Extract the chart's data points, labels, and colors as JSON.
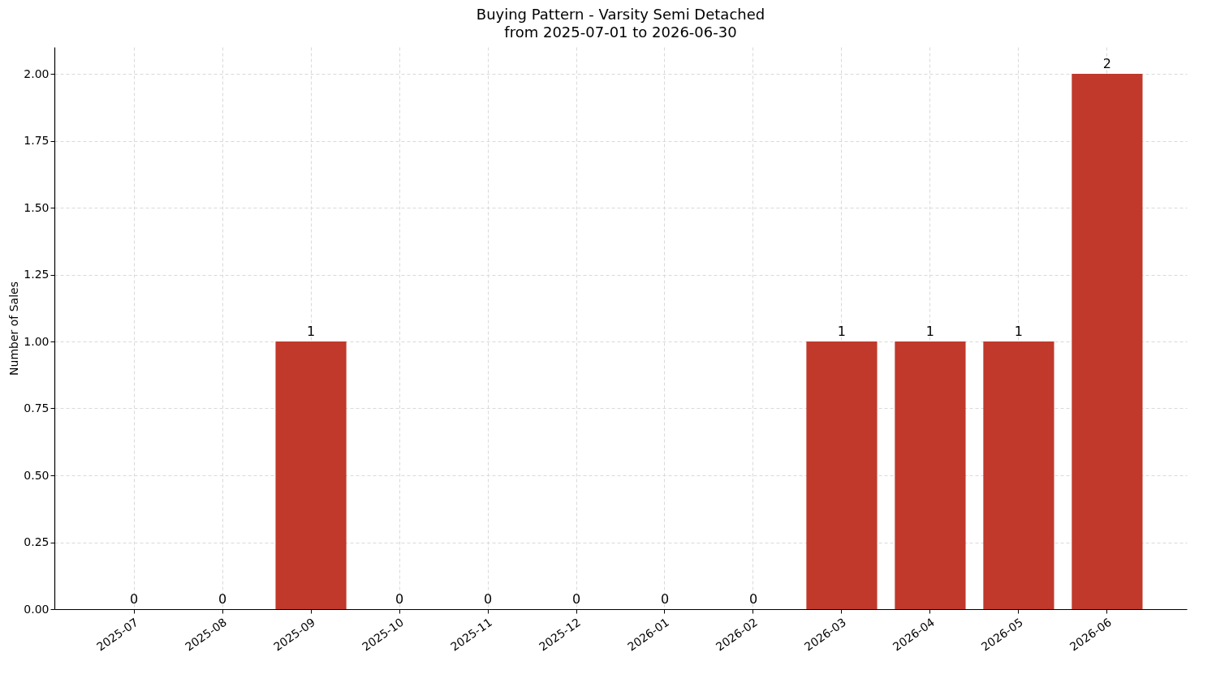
{
  "chart_data": {
    "type": "bar",
    "title": "Buying Pattern - Varsity Semi Detached",
    "subtitle": "from 2025-07-01 to 2026-06-30",
    "ylabel": "Number of Sales",
    "categories": [
      "2025-07",
      "2025-08",
      "2025-09",
      "2025-10",
      "2025-11",
      "2025-12",
      "2026-01",
      "2026-02",
      "2026-03",
      "2026-04",
      "2026-05",
      "2026-06"
    ],
    "values": [
      0,
      0,
      1,
      0,
      0,
      0,
      0,
      0,
      1,
      1,
      1,
      2
    ],
    "color": "#c0392b",
    "ylim": [
      0,
      2.1
    ],
    "yticks": [
      {
        "value": 0,
        "label": "0.00"
      },
      {
        "value": 0.25,
        "label": "0.25"
      },
      {
        "value": 0.5,
        "label": "0.50"
      },
      {
        "value": 0.75,
        "label": "0.75"
      },
      {
        "value": 1,
        "label": "1.00"
      },
      {
        "value": 1.25,
        "label": "1.25"
      },
      {
        "value": 1.5,
        "label": "1.50"
      },
      {
        "value": 1.75,
        "label": "1.75"
      },
      {
        "value": 2,
        "label": "2.00"
      }
    ],
    "grid": true,
    "data_labels": true
  }
}
